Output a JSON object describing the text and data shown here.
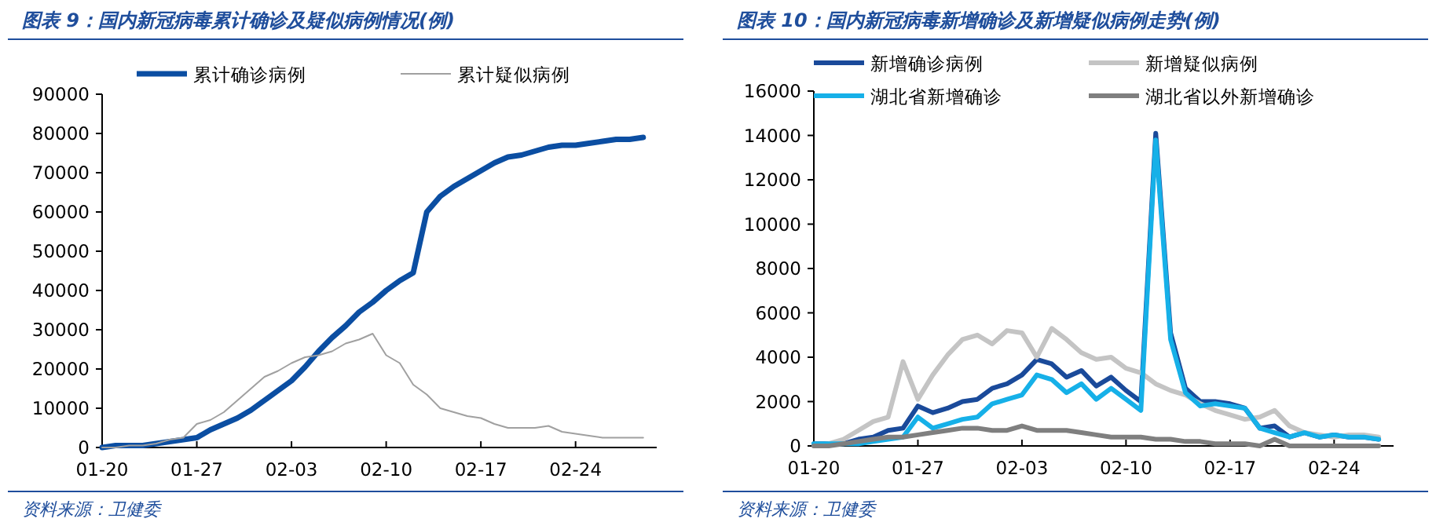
{
  "chart_data": [
    {
      "type": "line",
      "title": "图表 9：国内新冠病毒累计确诊及疑似病例情况(例)",
      "annotations": [
        "资料来源：卫健委"
      ],
      "x": [
        "--01-20",
        "--01-21",
        "--01-22",
        "--01-23",
        "--01-24",
        "--01-25",
        "--01-26",
        "--01-27",
        "--01-28",
        "--01-29",
        "--01-30",
        "--01-31",
        "--02-01",
        "--02-02",
        "--02-03",
        "--02-04",
        "--02-05",
        "--02-06",
        "--02-07",
        "--02-08",
        "--02-09",
        "--02-10",
        "--02-11",
        "--02-12",
        "--02-13",
        "--02-14",
        "--02-15",
        "--02-16",
        "--02-17",
        "--02-18",
        "--02-19",
        "--02-20",
        "--02-21",
        "--02-22",
        "--02-23",
        "--02-24",
        "--02-25",
        "--02-26",
        "--02-27",
        "--02-28",
        "--02-29"
      ],
      "series": [
        {
          "name": "累计确诊病例",
          "color": "#0b4ea2",
          "values": [
            0,
            500,
            500,
            500,
            1000,
            1500,
            2000,
            2500,
            4500,
            6000,
            7500,
            9500,
            12000,
            14500,
            17000,
            20500,
            24500,
            28000,
            31000,
            34500,
            37000,
            40000,
            42500,
            44500,
            60000,
            64000,
            66500,
            68500,
            70500,
            72500,
            74000,
            74500,
            75500,
            76500,
            77000,
            77000,
            77500,
            78000,
            78500,
            78500,
            79000
          ]
        },
        {
          "name": "累计疑似病例",
          "color": "#a0a0a0",
          "values": [
            0,
            0,
            500,
            500,
            1000,
            2000,
            2500,
            6000,
            7000,
            9000,
            12000,
            15000,
            18000,
            19500,
            21500,
            23000,
            23500,
            24500,
            26500,
            27500,
            29000,
            23500,
            21500,
            16000,
            13500,
            10000,
            9000,
            8000,
            7500,
            6000,
            5000,
            5000,
            5000,
            5500,
            4000,
            3500,
            3000,
            2500,
            2500,
            2500,
            2500
          ]
        }
      ],
      "xlim": [
        "--01-20",
        "--03-01"
      ],
      "xticks": [
        {
          "value": "--01-20",
          "label": "01-20"
        },
        {
          "value": "--01-27",
          "label": "01-27"
        },
        {
          "value": "--02-03",
          "label": "02-03"
        },
        {
          "value": "--02-10",
          "label": "02-10"
        },
        {
          "value": "--02-17",
          "label": "02-17"
        },
        {
          "value": "--02-24",
          "label": "02-24"
        }
      ],
      "ylim": [
        0,
        90000
      ],
      "yticks": [
        0,
        10000,
        20000,
        30000,
        40000,
        50000,
        60000,
        70000,
        80000,
        90000
      ],
      "legend": "top",
      "grid": false,
      "marker": "none",
      "line_style": "solid"
    },
    {
      "type": "line",
      "title": "图表 10：国内新冠病毒新增确诊及新增疑似病例走势(例)",
      "annotations": [
        "资料来源：卫健委"
      ],
      "x": [
        "--01-20",
        "--01-21",
        "--01-22",
        "--01-23",
        "--01-24",
        "--01-25",
        "--01-26",
        "--01-27",
        "--01-28",
        "--01-29",
        "--01-30",
        "--01-31",
        "--02-01",
        "--02-02",
        "--02-03",
        "--02-04",
        "--02-05",
        "--02-06",
        "--02-07",
        "--02-08",
        "--02-09",
        "--02-10",
        "--02-11",
        "--02-12",
        "--02-13",
        "--02-14",
        "--02-15",
        "--02-16",
        "--02-17",
        "--02-18",
        "--02-19",
        "--02-20",
        "--02-21",
        "--02-22",
        "--02-23",
        "--02-24",
        "--02-25",
        "--02-26",
        "--02-27"
      ],
      "series": [
        {
          "name": "新增确诊病例",
          "color": "#1a4a9a",
          "values": [
            100,
            100,
            100,
            300,
            400,
            700,
            800,
            1800,
            1500,
            1700,
            2000,
            2100,
            2600,
            2800,
            3200,
            3900,
            3700,
            3100,
            3400,
            2700,
            3100,
            2500,
            2000,
            14100,
            5100,
            2600,
            2000,
            2000,
            1900,
            1700,
            800,
            900,
            400,
            600,
            400,
            500,
            400,
            400,
            300
          ]
        },
        {
          "name": "新增疑似病例",
          "color": "#c4c4c4",
          "values": [
            0,
            100,
            300,
            700,
            1100,
            1300,
            3800,
            2100,
            3200,
            4100,
            4800,
            5000,
            4600,
            5200,
            5100,
            4000,
            5300,
            4800,
            4200,
            3900,
            4000,
            3500,
            3300,
            2800,
            2500,
            2300,
            1900,
            1600,
            1400,
            1200,
            1300,
            1600,
            900,
            600,
            500,
            400,
            500,
            500,
            400
          ]
        },
        {
          "name": "湖北省新增确诊",
          "color": "#16b0e8",
          "values": [
            100,
            100,
            100,
            100,
            200,
            300,
            400,
            1300,
            800,
            1000,
            1200,
            1300,
            1900,
            2100,
            2300,
            3200,
            3000,
            2400,
            2800,
            2100,
            2600,
            2100,
            1600,
            13800,
            4800,
            2400,
            1800,
            1900,
            1800,
            1700,
            800,
            600,
            400,
            600,
            400,
            500,
            400,
            400,
            300
          ]
        },
        {
          "name": "湖北省以外新增确诊",
          "color": "#7f7f7f",
          "values": [
            0,
            0,
            100,
            200,
            300,
            400,
            400,
            500,
            600,
            700,
            800,
            800,
            700,
            700,
            900,
            700,
            700,
            700,
            600,
            500,
            400,
            400,
            400,
            300,
            300,
            200,
            200,
            100,
            100,
            100,
            0,
            300,
            0,
            0,
            0,
            0,
            0,
            0,
            0
          ]
        }
      ],
      "xlim": [
        "--01-20",
        "--02-28"
      ],
      "xticks": [
        {
          "value": "--01-20",
          "label": "01-20"
        },
        {
          "value": "--01-27",
          "label": "01-27"
        },
        {
          "value": "--02-03",
          "label": "02-03"
        },
        {
          "value": "--02-10",
          "label": "02-10"
        },
        {
          "value": "--02-17",
          "label": "02-17"
        },
        {
          "value": "--02-24",
          "label": "02-24"
        }
      ],
      "ylim": [
        0,
        16000
      ],
      "yticks": [
        0,
        2000,
        4000,
        6000,
        8000,
        10000,
        12000,
        14000,
        16000
      ],
      "legend": "top",
      "grid": false,
      "marker": "none",
      "line_style": "solid"
    }
  ]
}
